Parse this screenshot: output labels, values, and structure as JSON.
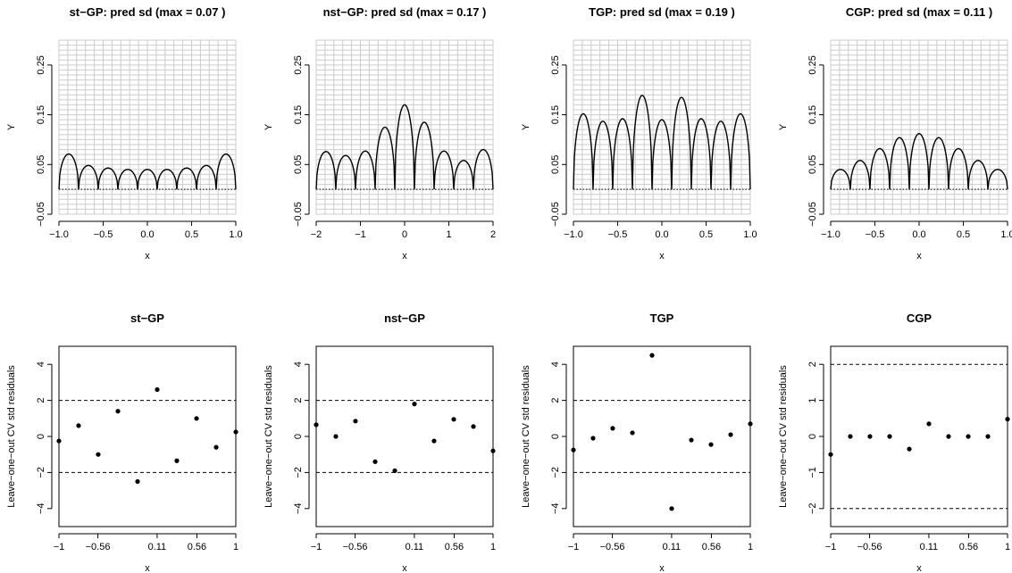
{
  "chart_data": [
    {
      "type": "line",
      "title": "st−GP: pred sd (max = 0.07 )",
      "xlabel": "x",
      "ylabel": "Y",
      "xlim": [
        -1.0,
        1.0
      ],
      "ylim": [
        -0.05,
        0.3
      ],
      "grid": true,
      "xticks": [
        -1.0,
        -0.5,
        0.0,
        0.5,
        1.0
      ],
      "xtick_labels": [
        "−1.0",
        "−0.5",
        "0.0",
        "0.5",
        "1.0"
      ],
      "yticks": [
        -0.05,
        0.05,
        0.15,
        0.25
      ],
      "ytick_labels": [
        "−0.05",
        "0.05",
        "0.15",
        "0.25"
      ],
      "baseline": 0,
      "design_x": [
        -1.0,
        -0.778,
        -0.556,
        -0.333,
        -0.111,
        0.111,
        0.333,
        0.556,
        0.778,
        1.0
      ],
      "arc_peaks": [
        0.071,
        0.048,
        0.043,
        0.04,
        0.04,
        0.04,
        0.043,
        0.048,
        0.071
      ]
    },
    {
      "type": "line",
      "title": "nst−GP: pred sd (max = 0.17 )",
      "xlabel": "x",
      "ylabel": "Y",
      "xlim": [
        -2.0,
        2.0
      ],
      "ylim": [
        -0.05,
        0.3
      ],
      "grid": true,
      "xticks": [
        -2,
        -1,
        0,
        1,
        2
      ],
      "xtick_labels": [
        "−2",
        "−1",
        "0",
        "1",
        "2"
      ],
      "yticks": [
        -0.05,
        0.05,
        0.15,
        0.25
      ],
      "ytick_labels": [
        "−0.05",
        "0.05",
        "0.15",
        "0.25"
      ],
      "baseline": 0,
      "design_x": [
        -2.0,
        -1.556,
        -1.111,
        -0.667,
        -0.222,
        0.222,
        0.667,
        1.111,
        1.556,
        2.0
      ],
      "arc_peaks": [
        0.076,
        0.068,
        0.077,
        0.125,
        0.17,
        0.135,
        0.077,
        0.058,
        0.08
      ]
    },
    {
      "type": "line",
      "title": "TGP: pred sd (max = 0.19 )",
      "xlabel": "x",
      "ylabel": "Y",
      "xlim": [
        -1.0,
        1.0
      ],
      "ylim": [
        -0.05,
        0.3
      ],
      "grid": true,
      "xticks": [
        -1.0,
        -0.5,
        0.0,
        0.5,
        1.0
      ],
      "xtick_labels": [
        "−1.0",
        "−0.5",
        "0.0",
        "0.5",
        "1.0"
      ],
      "yticks": [
        -0.05,
        0.05,
        0.15,
        0.25
      ],
      "ytick_labels": [
        "−0.05",
        "0.05",
        "0.15",
        "0.25"
      ],
      "baseline": 0,
      "design_x": [
        -1.0,
        -0.778,
        -0.556,
        -0.333,
        -0.111,
        0.111,
        0.333,
        0.556,
        0.778,
        1.0
      ],
      "arc_peaks": [
        0.152,
        0.137,
        0.142,
        0.189,
        0.14,
        0.185,
        0.142,
        0.137,
        0.152
      ]
    },
    {
      "type": "line",
      "title": "CGP: pred sd (max = 0.11 )",
      "xlabel": "x",
      "ylabel": "Y",
      "xlim": [
        -1.0,
        1.0
      ],
      "ylim": [
        -0.05,
        0.3
      ],
      "grid": true,
      "xticks": [
        -1.0,
        -0.5,
        0.0,
        0.5,
        1.0
      ],
      "xtick_labels": [
        "−1.0",
        "−0.5",
        "0.0",
        "0.5",
        "1.0"
      ],
      "yticks": [
        -0.05,
        0.05,
        0.15,
        0.25
      ],
      "ytick_labels": [
        "−0.05",
        "0.05",
        "0.15",
        "0.25"
      ],
      "baseline": 0,
      "design_x": [
        -1.0,
        -0.778,
        -0.556,
        -0.333,
        -0.111,
        0.111,
        0.333,
        0.556,
        0.778,
        1.0
      ],
      "arc_peaks": [
        0.04,
        0.058,
        0.082,
        0.104,
        0.112,
        0.104,
        0.082,
        0.058,
        0.04
      ]
    },
    {
      "type": "scatter",
      "title": "st−GP",
      "xlabel": "x",
      "ylabel": "Leave−one−out CV std residuals",
      "xlim": [
        -1.0,
        1.0
      ],
      "ylim": [
        -5.0,
        5.0
      ],
      "hlines": [
        2,
        -2
      ],
      "xticks": [
        -1.0,
        -0.56,
        0.11,
        0.56,
        1.0
      ],
      "xtick_labels": [
        "−1",
        "−0.56",
        "0.11",
        "0.56",
        "1"
      ],
      "yticks": [
        -4,
        -2,
        0,
        2,
        4
      ],
      "ytick_labels": [
        "−4",
        "−2",
        "0",
        "2",
        "4"
      ],
      "x": [
        -1.0,
        -0.778,
        -0.556,
        -0.333,
        -0.111,
        0.111,
        0.333,
        0.556,
        0.778,
        1.0
      ],
      "y": [
        -0.25,
        0.6,
        -1.0,
        1.4,
        -2.5,
        2.6,
        -1.35,
        1.0,
        -0.6,
        0.25
      ]
    },
    {
      "type": "scatter",
      "title": "nst−GP",
      "xlabel": "x",
      "ylabel": "Leave−one−out CV std residuals",
      "xlim": [
        -1.0,
        1.0
      ],
      "ylim": [
        -5.0,
        5.0
      ],
      "hlines": [
        2,
        -2
      ],
      "xticks": [
        -1.0,
        -0.56,
        0.11,
        0.56,
        1.0
      ],
      "xtick_labels": [
        "−1",
        "−0.56",
        "0.11",
        "0.56",
        "1"
      ],
      "yticks": [
        -4,
        -2,
        0,
        2,
        4
      ],
      "ytick_labels": [
        "−4",
        "−2",
        "0",
        "2",
        "4"
      ],
      "x": [
        -1.0,
        -0.778,
        -0.556,
        -0.333,
        -0.111,
        0.111,
        0.333,
        0.556,
        0.778,
        1.0
      ],
      "y": [
        0.65,
        0.0,
        0.85,
        -1.4,
        -1.9,
        1.8,
        -0.25,
        0.95,
        0.55,
        -0.8
      ]
    },
    {
      "type": "scatter",
      "title": "TGP",
      "xlabel": "x",
      "ylabel": "Leave−one−out CV std residuals",
      "xlim": [
        -1.0,
        1.0
      ],
      "ylim": [
        -5.0,
        5.0
      ],
      "hlines": [
        2,
        -2
      ],
      "xticks": [
        -1.0,
        -0.56,
        0.11,
        0.56,
        1.0
      ],
      "xtick_labels": [
        "−1",
        "−0.56",
        "0.11",
        "0.56",
        "1"
      ],
      "yticks": [
        -4,
        -2,
        0,
        2,
        4
      ],
      "ytick_labels": [
        "−4",
        "−2",
        "0",
        "2",
        "4"
      ],
      "x": [
        -1.0,
        -0.778,
        -0.556,
        -0.333,
        -0.111,
        0.111,
        0.333,
        0.556,
        0.778,
        1.0
      ],
      "y": [
        -0.75,
        -0.1,
        0.45,
        0.2,
        4.5,
        -4.0,
        -0.2,
        -0.45,
        0.1,
        0.7
      ]
    },
    {
      "type": "scatter",
      "title": "CGP",
      "xlabel": "x",
      "ylabel": "Leave−one−out CV std residuals",
      "xlim": [
        -1.0,
        1.0
      ],
      "ylim": [
        -2.5,
        2.5
      ],
      "hlines": [
        2,
        -2
      ],
      "xticks": [
        -1.0,
        -0.56,
        0.11,
        0.56,
        1.0
      ],
      "xtick_labels": [
        "−1",
        "−0.56",
        "0.11",
        "0.56",
        "1"
      ],
      "yticks": [
        -2,
        -1,
        0,
        1,
        2
      ],
      "ytick_labels": [
        "−2",
        "−1",
        "0",
        "1",
        "2"
      ],
      "x": [
        -1.0,
        -0.778,
        -0.556,
        -0.333,
        -0.111,
        0.111,
        0.333,
        0.556,
        0.778,
        1.0
      ],
      "y": [
        -0.5,
        0.0,
        0.0,
        0.0,
        -0.35,
        0.35,
        0.0,
        0.0,
        0.0,
        0.48
      ]
    }
  ]
}
